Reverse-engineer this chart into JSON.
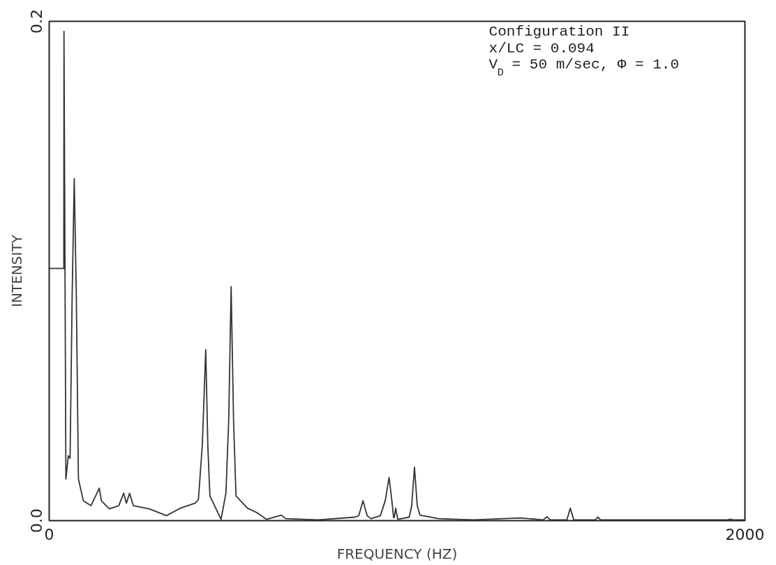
{
  "chart_data": {
    "type": "line",
    "xlabel": "FREQUENCY (HZ)",
    "ylabel": "INTENSITY",
    "xlim": [
      0,
      2000
    ],
    "ylim": [
      0,
      0.2
    ],
    "xticks": [
      0,
      2000
    ],
    "yticks": [
      {
        "value": 0,
        "label": "0.0"
      },
      {
        "value": 0.2,
        "label": "0.2"
      }
    ],
    "marker": "none",
    "line_style": "solid",
    "annotations": [
      "Configuration II",
      "x/LC = 0.094",
      "V$_{D}$ = 50 m/sec, Φ = 1.0"
    ],
    "series": [
      {
        "color": "#333333",
        "x": [
          0,
          42,
          42.5,
          48,
          55,
          60,
          66,
          72,
          78,
          84,
          98,
          120,
          144,
          150,
          154,
          173,
          200,
          214,
          222,
          231,
          242,
          288,
          337,
          377,
          420,
          429,
          440,
          450,
          456,
          462,
          494,
          508,
          516,
          523,
          530,
          537,
          570,
          596,
          625,
          667,
          680,
          773,
          879,
          890,
          902,
          914,
          925,
          952,
          966,
          977,
          985,
          990,
          992,
          996,
          1002,
          1035,
          1042,
          1050,
          1058,
          1066,
          1119,
          1221,
          1354,
          1420,
          1431,
          1440,
          1488,
          1498,
          1508,
          1570,
          1577,
          1585,
          1950,
          1958,
          1966,
          2000
        ],
        "values": [
          0.101,
          0.101,
          0.196,
          0.0167,
          0.026,
          0.025,
          0.09,
          0.137,
          0.09,
          0.0167,
          0.008,
          0.006,
          0.013,
          0.008,
          0.0074,
          0.0047,
          0.006,
          0.011,
          0.007,
          0.011,
          0.006,
          0.0047,
          0.002,
          0.005,
          0.007,
          0.0085,
          0.03,
          0.0685,
          0.03,
          0.0099,
          0.0005,
          0.011,
          0.04,
          0.0937,
          0.04,
          0.0099,
          0.005,
          0.0033,
          0.0005,
          0.0022,
          0.0008,
          0.0003,
          0.0014,
          0.002,
          0.008,
          0.002,
          0.0008,
          0.002,
          0.008,
          0.0173,
          0.008,
          0.0012,
          0.0012,
          0.005,
          0.0005,
          0.0014,
          0.006,
          0.0214,
          0.006,
          0.0022,
          0.0008,
          0.0003,
          0.0011,
          0.0003,
          0.0016,
          0.0003,
          0.0003,
          0.005,
          0.0003,
          0.0003,
          0.0014,
          0.0003,
          0.0003,
          0.0006,
          0.0003,
          0.0003
        ]
      }
    ]
  }
}
